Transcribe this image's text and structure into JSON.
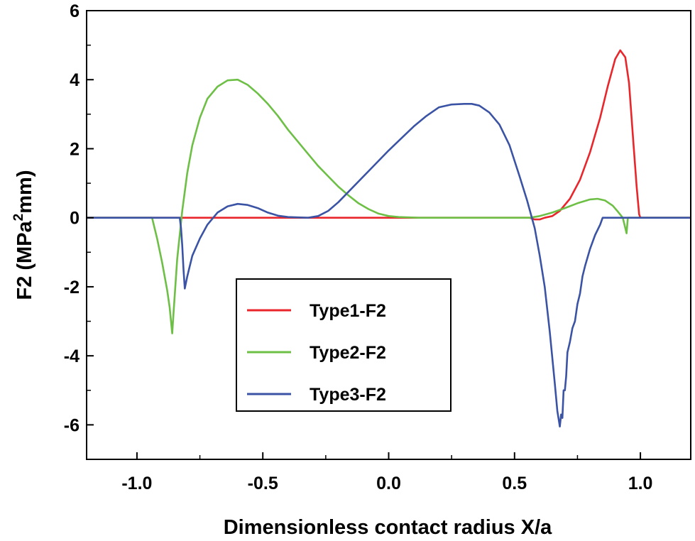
{
  "chart_data": {
    "type": "line",
    "xlabel": "Dimensionless contact radius X/a",
    "ylabel_main": "F2 (MPa",
    "ylabel_sup": "2",
    "ylabel_end": "mm)",
    "xlim": [
      -1.2,
      1.2
    ],
    "ylim": [
      -7,
      6
    ],
    "xticks": [
      -1.0,
      -0.5,
      0.0,
      0.5,
      1.0
    ],
    "xtick_labels": [
      "-1.0",
      "-0.5",
      "0.0",
      "0.5",
      "1.0"
    ],
    "yticks": [
      -6,
      -4,
      -2,
      0,
      2,
      4,
      6
    ],
    "ytick_labels": [
      "-6",
      "-4",
      "-2",
      "0",
      "2",
      "4",
      "6"
    ],
    "grid": false,
    "legend_position": "lower-center",
    "series": [
      {
        "name": "Type1-F2",
        "color": "#e8262b",
        "x": [
          -1.2,
          0.56,
          0.58,
          0.6,
          0.62,
          0.65,
          0.68,
          0.72,
          0.76,
          0.8,
          0.84,
          0.87,
          0.9,
          0.92,
          0.94,
          0.955,
          0.97,
          0.985,
          0.995,
          1.0,
          1.2
        ],
        "y": [
          0,
          0,
          -0.05,
          -0.05,
          0.0,
          0.05,
          0.2,
          0.55,
          1.1,
          1.9,
          2.9,
          3.8,
          4.6,
          4.85,
          4.65,
          3.9,
          2.4,
          0.9,
          0.1,
          0,
          0
        ]
      },
      {
        "name": "Type2-F2",
        "color": "#6dbf45",
        "x": [
          -1.2,
          -0.94,
          -0.92,
          -0.9,
          -0.88,
          -0.87,
          -0.86,
          -0.855,
          -0.84,
          -0.82,
          -0.8,
          -0.78,
          -0.75,
          -0.72,
          -0.68,
          -0.64,
          -0.6,
          -0.56,
          -0.52,
          -0.48,
          -0.44,
          -0.4,
          -0.36,
          -0.32,
          -0.28,
          -0.24,
          -0.2,
          -0.16,
          -0.12,
          -0.08,
          -0.04,
          0.0,
          0.04,
          0.08,
          0.12,
          0.14,
          0.56,
          0.6,
          0.65,
          0.7,
          0.75,
          0.8,
          0.83,
          0.86,
          0.89,
          0.91,
          0.93,
          0.945,
          0.95,
          1.2
        ],
        "y": [
          0,
          0,
          -0.6,
          -1.3,
          -2.1,
          -2.6,
          -3.35,
          -2.8,
          -1.2,
          0.2,
          1.3,
          2.1,
          2.9,
          3.45,
          3.8,
          3.98,
          4.0,
          3.85,
          3.6,
          3.3,
          2.95,
          2.55,
          2.2,
          1.85,
          1.5,
          1.2,
          0.9,
          0.65,
          0.42,
          0.25,
          0.12,
          0.05,
          0.02,
          0.01,
          0.0,
          0,
          0,
          0.05,
          0.15,
          0.28,
          0.42,
          0.53,
          0.55,
          0.5,
          0.35,
          0.18,
          0.0,
          -0.45,
          0,
          0
        ]
      },
      {
        "name": "Type3-F2",
        "color": "#3b53a4",
        "x": [
          -1.2,
          -0.83,
          -0.825,
          -0.82,
          -0.815,
          -0.81,
          -0.8,
          -0.78,
          -0.75,
          -0.72,
          -0.68,
          -0.64,
          -0.6,
          -0.56,
          -0.52,
          -0.48,
          -0.44,
          -0.4,
          -0.36,
          -0.32,
          -0.28,
          -0.24,
          -0.2,
          -0.16,
          -0.12,
          -0.08,
          -0.04,
          0.0,
          0.05,
          0.1,
          0.15,
          0.2,
          0.25,
          0.3,
          0.33,
          0.36,
          0.4,
          0.44,
          0.48,
          0.52,
          0.55,
          0.58,
          0.6,
          0.62,
          0.64,
          0.66,
          0.67,
          0.68,
          0.685,
          0.69,
          0.695,
          0.7,
          0.705,
          0.71,
          0.72,
          0.73,
          0.74,
          0.75,
          0.76,
          0.77,
          0.78,
          0.8,
          0.82,
          0.84,
          0.85,
          1.2
        ],
        "y": [
          0,
          0,
          -0.3,
          -0.8,
          -1.5,
          -2.05,
          -1.7,
          -1.1,
          -0.6,
          -0.2,
          0.15,
          0.33,
          0.4,
          0.37,
          0.28,
          0.15,
          0.06,
          0.02,
          0.01,
          0.0,
          0.05,
          0.2,
          0.45,
          0.75,
          1.05,
          1.35,
          1.65,
          1.95,
          2.3,
          2.65,
          2.95,
          3.2,
          3.28,
          3.3,
          3.3,
          3.25,
          3.05,
          2.7,
          2.1,
          1.2,
          0.5,
          -0.3,
          -1.1,
          -2.0,
          -3.3,
          -4.8,
          -5.6,
          -6.05,
          -5.7,
          -5.8,
          -5.0,
          -5.0,
          -4.6,
          -3.9,
          -3.6,
          -3.2,
          -3.0,
          -2.5,
          -2.2,
          -1.7,
          -1.4,
          -0.9,
          -0.5,
          -0.2,
          0,
          0
        ]
      }
    ]
  }
}
